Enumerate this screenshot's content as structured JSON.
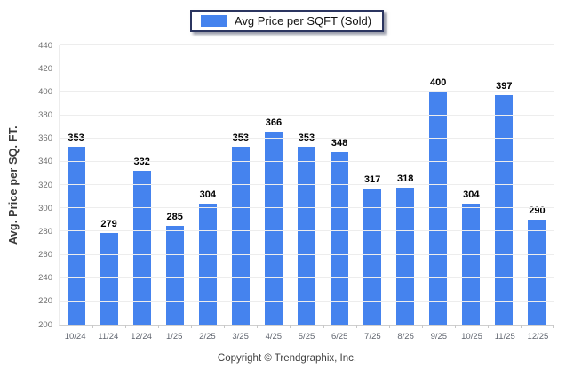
{
  "legend": {
    "label": "Avg Price per SQFT (Sold)",
    "swatch_color": "#4583ee"
  },
  "chart_data": {
    "type": "bar",
    "title": "Avg Price per SQFT (Sold)",
    "categories": [
      "10/24",
      "11/24",
      "12/24",
      "1/25",
      "2/25",
      "3/25",
      "4/25",
      "5/25",
      "6/25",
      "7/25",
      "8/25",
      "9/25",
      "10/25",
      "11/25",
      "12/25"
    ],
    "series": [
      {
        "name": "Avg Price per SQFT (Sold)",
        "values": [
          353,
          279,
          332,
          285,
          304,
          353,
          366,
          353,
          348,
          317,
          318,
          400,
          304,
          397,
          290
        ],
        "color": "#4583ee"
      }
    ],
    "xlabel": "",
    "ylabel": "Avg. Price per SQ. FT.",
    "ylim": [
      200,
      440
    ],
    "ytick_step": 20,
    "grid": "horizontal",
    "legend_position": "top",
    "value_labels": true
  },
  "footer": {
    "copyright": "Copyright © Trendgraphix, Inc."
  }
}
